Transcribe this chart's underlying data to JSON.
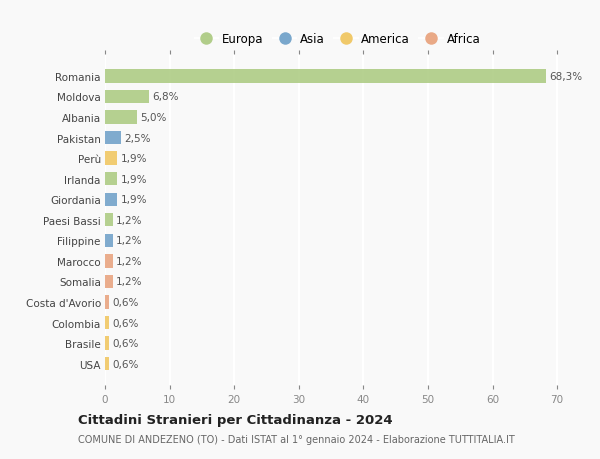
{
  "countries": [
    "Romania",
    "Moldova",
    "Albania",
    "Pakistan",
    "Perù",
    "Irlanda",
    "Giordania",
    "Paesi Bassi",
    "Filippine",
    "Marocco",
    "Somalia",
    "Costa d'Avorio",
    "Colombia",
    "Brasile",
    "USA"
  ],
  "values": [
    68.3,
    6.8,
    5.0,
    2.5,
    1.9,
    1.9,
    1.9,
    1.2,
    1.2,
    1.2,
    1.2,
    0.6,
    0.6,
    0.6,
    0.6
  ],
  "labels": [
    "68,3%",
    "6,8%",
    "5,0%",
    "2,5%",
    "1,9%",
    "1,9%",
    "1,9%",
    "1,2%",
    "1,2%",
    "1,2%",
    "1,2%",
    "0,6%",
    "0,6%",
    "0,6%",
    "0,6%"
  ],
  "continents": [
    "Europa",
    "Europa",
    "Europa",
    "Asia",
    "America",
    "Europa",
    "Asia",
    "Europa",
    "Asia",
    "Africa",
    "Africa",
    "Africa",
    "America",
    "America",
    "America"
  ],
  "continent_colors": {
    "Europa": "#aac97e",
    "Asia": "#6b9ec7",
    "America": "#f0c45a",
    "Africa": "#e8a07a"
  },
  "legend_order": [
    "Europa",
    "Asia",
    "America",
    "Africa"
  ],
  "xlim": [
    0,
    72
  ],
  "xticks": [
    0,
    10,
    20,
    30,
    40,
    50,
    60,
    70
  ],
  "title": "Cittadini Stranieri per Cittadinanza - 2024",
  "subtitle": "COMUNE DI ANDEZENO (TO) - Dati ISTAT al 1° gennaio 2024 - Elaborazione TUTTITALIA.IT",
  "bg_color": "#f9f9f9",
  "grid_color": "#dddddd",
  "bar_height": 0.65,
  "label_fontsize": 7.5,
  "ytick_fontsize": 7.5,
  "xtick_fontsize": 7.5,
  "title_fontsize": 9.5,
  "subtitle_fontsize": 7.0,
  "legend_fontsize": 8.5
}
